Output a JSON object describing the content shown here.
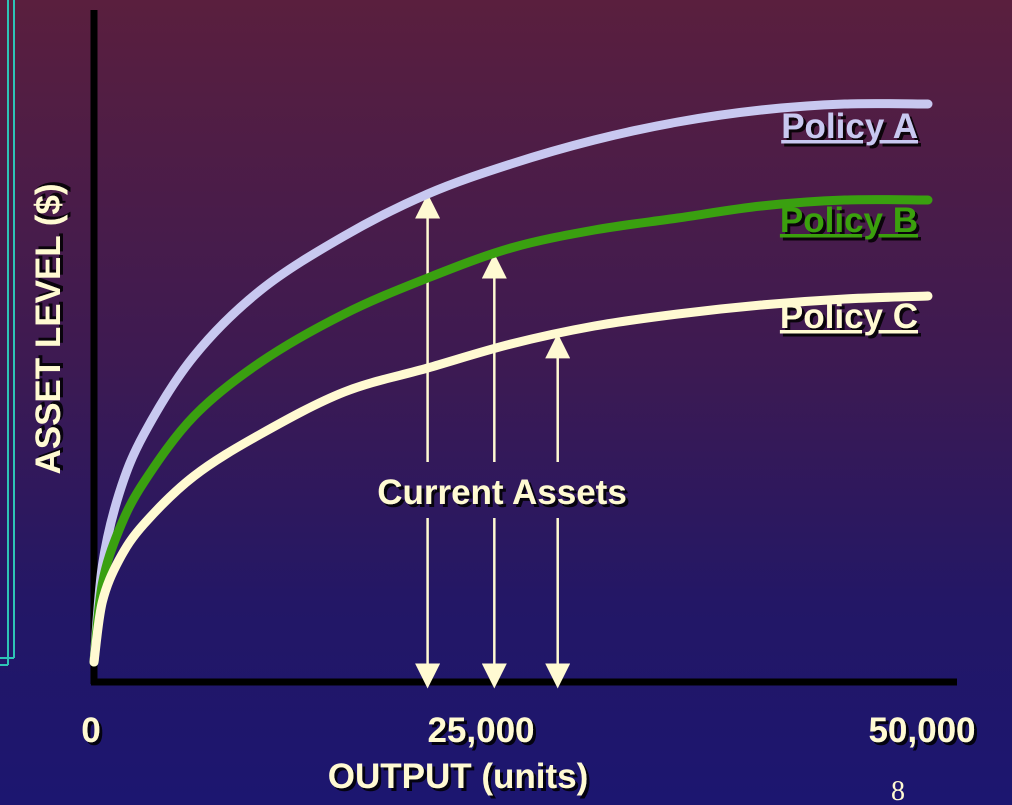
{
  "slide": {
    "page_number": "8"
  },
  "chart_data": {
    "type": "line",
    "ylabel": "ASSET LEVEL ($)",
    "xlabel": "OUTPUT (units)",
    "x_ticks": [
      "0",
      "25,000",
      "50,000"
    ],
    "xlim": [
      0,
      50000
    ],
    "ylim": [
      0,
      100
    ],
    "annotation": "Current Assets",
    "annotation_x": [
      20000,
      24000,
      27800
    ],
    "series": [
      {
        "name": "Policy A",
        "color": "#c8c8f0",
        "x": [
          0,
          500,
          1500,
          3000,
          6000,
          10000,
          15000,
          20000,
          25000,
          30000,
          35000,
          40000,
          45000,
          50000
        ],
        "y": [
          0,
          16,
          28,
          38,
          51,
          62,
          71,
          78,
          83,
          87,
          90,
          92,
          93,
          93
        ]
      },
      {
        "name": "Policy B",
        "color": "#3aa010",
        "x": [
          0,
          500,
          1500,
          3000,
          6000,
          10000,
          15000,
          20000,
          25000,
          30000,
          35000,
          40000,
          45000,
          50000
        ],
        "y": [
          0,
          13,
          22,
          30,
          41,
          50,
          58,
          64,
          69,
          72,
          74,
          76,
          77,
          77
        ]
      },
      {
        "name": "Policy C",
        "color": "#fffad2",
        "x": [
          0,
          500,
          1500,
          3000,
          6000,
          10000,
          15000,
          20000,
          25000,
          30000,
          35000,
          40000,
          45000,
          50000
        ],
        "y": [
          0,
          10,
          17,
          23,
          31,
          38,
          45,
          49,
          53,
          56,
          58,
          59.5,
          60.5,
          61
        ]
      }
    ],
    "grid": false,
    "legend": "inline labels at right end of curves"
  }
}
